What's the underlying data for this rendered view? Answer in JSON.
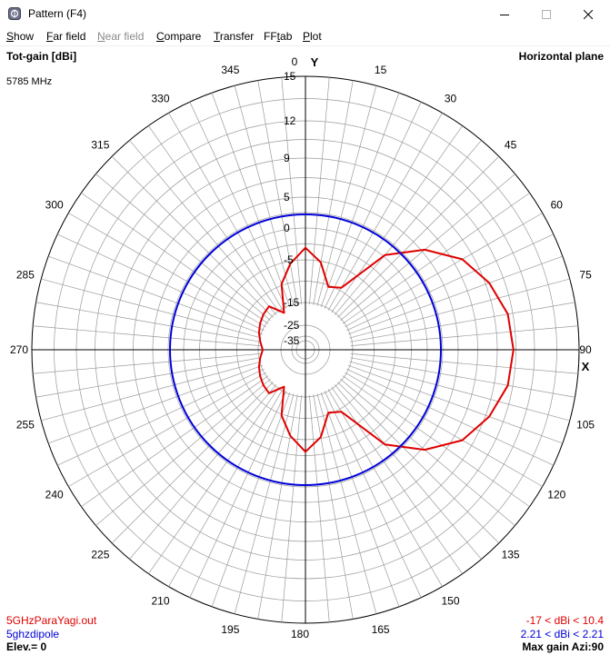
{
  "window": {
    "title": "Pattern   (F4)",
    "app_icon": "antenna-app-icon",
    "controls": [
      "minimize-icon",
      "maximize-icon",
      "close-icon"
    ]
  },
  "menu": [
    {
      "label": "Show",
      "mnemonic": "S",
      "enabled": true
    },
    {
      "label": "Far field",
      "mnemonic": "F",
      "enabled": true
    },
    {
      "label": "Near field",
      "mnemonic": "N",
      "enabled": false
    },
    {
      "label": "Compare",
      "mnemonic": "C",
      "enabled": true
    },
    {
      "label": "Transfer",
      "mnemonic": "T",
      "enabled": true
    },
    {
      "label": "FFtab",
      "mnemonic": "t",
      "enabled": true
    },
    {
      "label": "Plot",
      "mnemonic": "P",
      "enabled": true
    }
  ],
  "header": {
    "quantity": "Tot-gain [dBi]",
    "plane": "Horizontal plane",
    "frequency": "5785 MHz"
  },
  "footer": {
    "elevation": "Elev.= 0",
    "max_gain": "Max gain Azi:90",
    "trace1_file": "5GHzParaYagi.out",
    "trace1_range": "-17 < dBi < 10.4",
    "trace2_file": "5ghzdipole",
    "trace2_range": "2.21 < dBi < 2.21"
  },
  "colors": {
    "trace1": "#e00000",
    "trace2": "#0000d8",
    "grid": "#999999",
    "axis": "#000000"
  },
  "chart_data": {
    "type": "polar",
    "axis_labels": {
      "y": "Y",
      "x": "X"
    },
    "angular_ticks_deg": [
      0,
      15,
      30,
      45,
      60,
      75,
      90,
      105,
      120,
      135,
      150,
      165,
      180,
      195,
      210,
      225,
      240,
      255,
      270,
      285,
      300,
      315,
      330,
      345
    ],
    "radial_ticks_dbi": [
      15,
      12,
      9,
      5,
      0,
      -5,
      -15,
      -25,
      -35
    ],
    "series": [
      {
        "name": "5GHzParaYagi.out",
        "color": "#e00000",
        "azimuth_deg": [
          0,
          10,
          20,
          30,
          40,
          50,
          60,
          70,
          80,
          90,
          100,
          110,
          120,
          130,
          140,
          150,
          160,
          170,
          180,
          190,
          200,
          210,
          220,
          230,
          240,
          250,
          260,
          270,
          280,
          290,
          300,
          310,
          320,
          330,
          340,
          350
        ],
        "gain_dbi": [
          -3.1,
          -5.3,
          -10.4,
          -9.3,
          0.3,
          5.3,
          7.9,
          9.3,
          10.1,
          10.3,
          10.1,
          9.3,
          7.9,
          5.3,
          0.3,
          -9.3,
          -10.4,
          -5.3,
          -3.1,
          -5.6,
          -9.7,
          -17,
          -12.8,
          -13.2,
          -13.8,
          -14.5,
          -15.6,
          -17,
          -15.6,
          -14.5,
          -13.8,
          -13.2,
          -12.8,
          -17,
          -9.7,
          -5.6
        ]
      },
      {
        "name": "5ghzdipole",
        "color": "#0000d8",
        "azimuth_deg": [
          0,
          90,
          180,
          270
        ],
        "gain_dbi": [
          2.21,
          2.21,
          2.21,
          2.21
        ]
      }
    ]
  }
}
